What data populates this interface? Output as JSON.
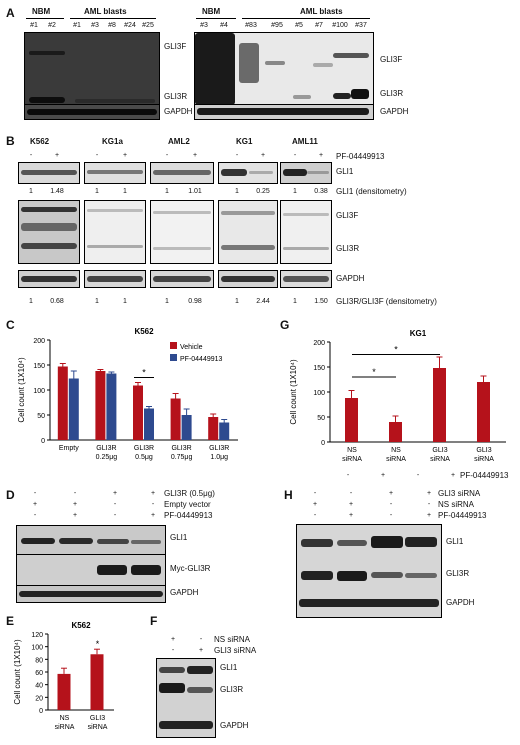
{
  "panelA": {
    "letter": "A",
    "left": {
      "nbm": "NBM",
      "aml": "AML blasts",
      "lanes": [
        "#1",
        "#2",
        "#1",
        "#3",
        "#8",
        "#24",
        "#25"
      ],
      "bands": [
        "GLI3F",
        "GLI3R",
        "GAPDH"
      ]
    },
    "right": {
      "nbm": "NBM",
      "aml": "AML blasts",
      "lanes": [
        "#3",
        "#4",
        "#83",
        "#95",
        "#5",
        "#7",
        "#100",
        "#37"
      ],
      "bands": [
        "GLI3F",
        "GLI3R",
        "GAPDH"
      ]
    }
  },
  "panelB": {
    "letter": "B",
    "cells": [
      "K562",
      "KG1a",
      "AML2",
      "KG1",
      "AML11"
    ],
    "minus": "-",
    "plus": "+",
    "drug": "PF-04449913",
    "gli1_label": "GLI1",
    "gli1_dens": [
      "1",
      "1.48",
      "1",
      "1",
      "1",
      "1.01",
      "1",
      "0.25",
      "1",
      "0.38"
    ],
    "gli1_dens_label": "GLI1 (densitometry)",
    "bands": [
      "GLI3F",
      "GLI3R",
      "GAPDH"
    ],
    "ratio_dens": [
      "1",
      "0.68",
      "1",
      "1",
      "1",
      "0.98",
      "1",
      "2.44",
      "1",
      "1.50"
    ],
    "ratio_label": "GLI3R/GLI3F (densitometry)"
  },
  "panelC": {
    "letter": "C",
    "chart_data": {
      "type": "bar",
      "title": "K562",
      "ylabel": "Cell count (1X10⁴)",
      "ylim": [
        0,
        200
      ],
      "yticks": [
        "0",
        "50",
        "100",
        "150",
        "200"
      ],
      "categories": [
        "Empty",
        "GLI3R 0.25μg",
        "GLI3R 0.5μg",
        "GLI3R 0.75μg",
        "GLI3R 1.0μg"
      ],
      "series": [
        {
          "name": "Vehicle",
          "color": "#b5121b",
          "values": [
            147,
            138,
            109,
            83,
            46
          ],
          "errors": [
            6,
            3,
            6,
            10,
            6
          ]
        },
        {
          "name": "PF-04449913",
          "color": "#2e4a8f",
          "values": [
            123,
            133,
            63,
            50,
            35
          ],
          "errors": [
            15,
            3,
            4,
            12,
            6
          ]
        }
      ],
      "annotation": "*"
    }
  },
  "panelD": {
    "letter": "D",
    "rows": [
      {
        "label": "GLI3R (0.5μg)",
        "signs": [
          "-",
          "-",
          "+",
          "+"
        ]
      },
      {
        "label": "Empty vector",
        "signs": [
          "+",
          "+",
          "-",
          "-"
        ]
      },
      {
        "label": "PF-04449913",
        "signs": [
          "-",
          "+",
          "-",
          "+"
        ]
      }
    ],
    "bands": [
      "GLI1",
      "Myc-GLI3R",
      "GAPDH"
    ]
  },
  "panelE": {
    "letter": "E",
    "chart_data": {
      "type": "bar",
      "title": "K562",
      "ylabel": "Cell count (1X10⁴)",
      "ylim": [
        0,
        120
      ],
      "yticks": [
        "0",
        "20",
        "40",
        "60",
        "80",
        "100",
        "120"
      ],
      "categories": [
        "NS siRNA",
        "GLI3 siRNA"
      ],
      "series": [
        {
          "color": "#b5121b",
          "values": [
            57,
            88
          ],
          "errors": [
            9,
            8
          ]
        }
      ],
      "annotation": "*"
    }
  },
  "panelF": {
    "letter": "F",
    "rows": [
      {
        "label": "NS siRNA",
        "signs": [
          "+",
          "-"
        ]
      },
      {
        "label": "GLI3 siRNA",
        "signs": [
          "-",
          "+"
        ]
      }
    ],
    "bands": [
      "GLI1",
      "GLI3R",
      "GAPDH"
    ]
  },
  "panelG": {
    "letter": "G",
    "chart_data": {
      "type": "bar",
      "title": "KG1",
      "ylabel": "Cell count (1X10⁴)",
      "ylim": [
        0,
        200
      ],
      "yticks": [
        "0",
        "50",
        "100",
        "150",
        "200"
      ],
      "categories": [
        "NS siRNA",
        "NS siRNA",
        "GLI3 siRNA",
        "GLI3 siRNA"
      ],
      "series": [
        {
          "color": "#b5121b",
          "values": [
            88,
            40,
            148,
            120
          ],
          "errors": [
            15,
            12,
            22,
            12
          ]
        }
      ],
      "annotation": "*"
    },
    "signs": [
      "-",
      "+",
      "-",
      "+"
    ],
    "drug": "PF-04449913"
  },
  "panelH": {
    "letter": "H",
    "rows": [
      {
        "label": "GLI3 siRNA",
        "signs": [
          "-",
          "-",
          "+",
          "+"
        ]
      },
      {
        "label": "NS siRNA",
        "signs": [
          "+",
          "+",
          "-",
          "-"
        ]
      },
      {
        "label": "PF-04449913",
        "signs": [
          "-",
          "+",
          "-",
          "+"
        ]
      }
    ],
    "bands": [
      "GLI1",
      "GLI3R",
      "GAPDH"
    ]
  }
}
